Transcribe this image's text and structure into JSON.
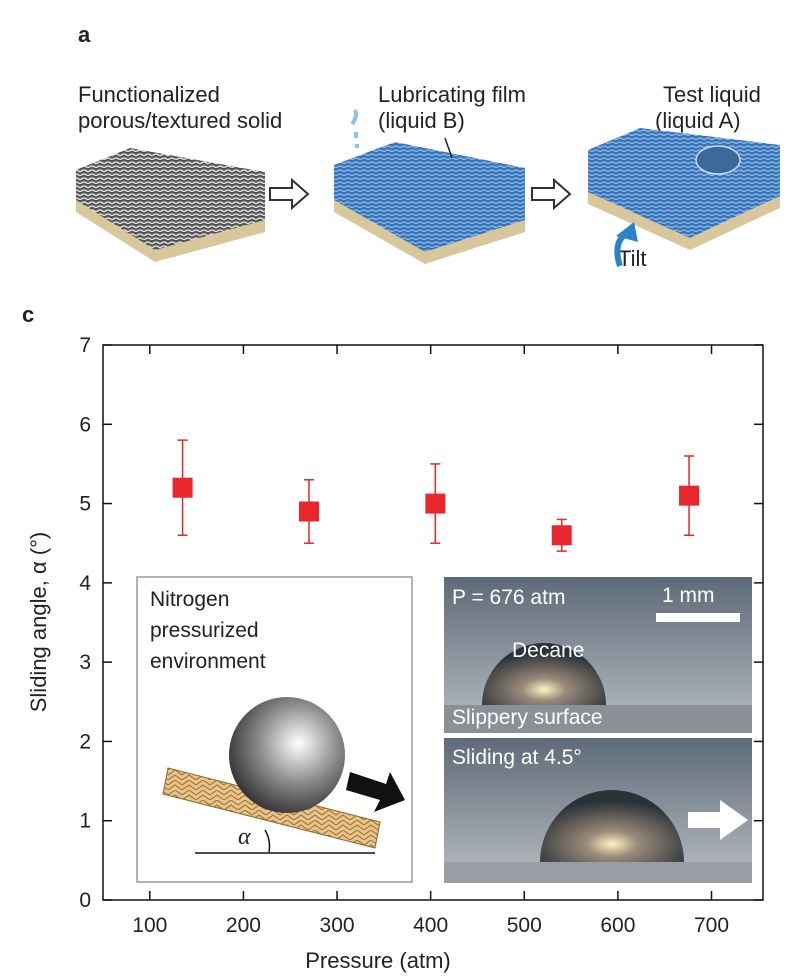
{
  "panel_a": {
    "letter": "a",
    "solid_label": [
      "Functionalized",
      "porous/textured solid"
    ],
    "film_label": [
      "Lubricating film",
      "(liquid B)"
    ],
    "test_label": [
      "Test liquid",
      "(liquid A)"
    ],
    "tilt_label": "Tilt"
  },
  "chart_data": {
    "type": "scatter",
    "panel_letter": "c",
    "x_label": "Pressure (atm)",
    "y_label": "Sliding angle, α (°)",
    "xlim": [
      50,
      755
    ],
    "ylim": [
      0,
      7
    ],
    "xticks": [
      100,
      200,
      300,
      400,
      500,
      600,
      700
    ],
    "yticks": [
      0,
      1,
      2,
      3,
      4,
      5,
      6,
      7
    ],
    "series": [
      {
        "color": "#e8262b",
        "x": [
          135,
          270,
          405,
          540,
          676
        ],
        "values": [
          5.2,
          4.9,
          5.0,
          4.6,
          5.1
        ],
        "errors": [
          0.6,
          0.4,
          0.5,
          0.2,
          0.5
        ]
      }
    ],
    "annotations": [
      "Nitrogen",
      "pressurized",
      "environment",
      "α",
      "P = 676 atm",
      "1 mm",
      "Decane",
      "Slippery surface",
      "Sliding at 4.5°"
    ]
  }
}
